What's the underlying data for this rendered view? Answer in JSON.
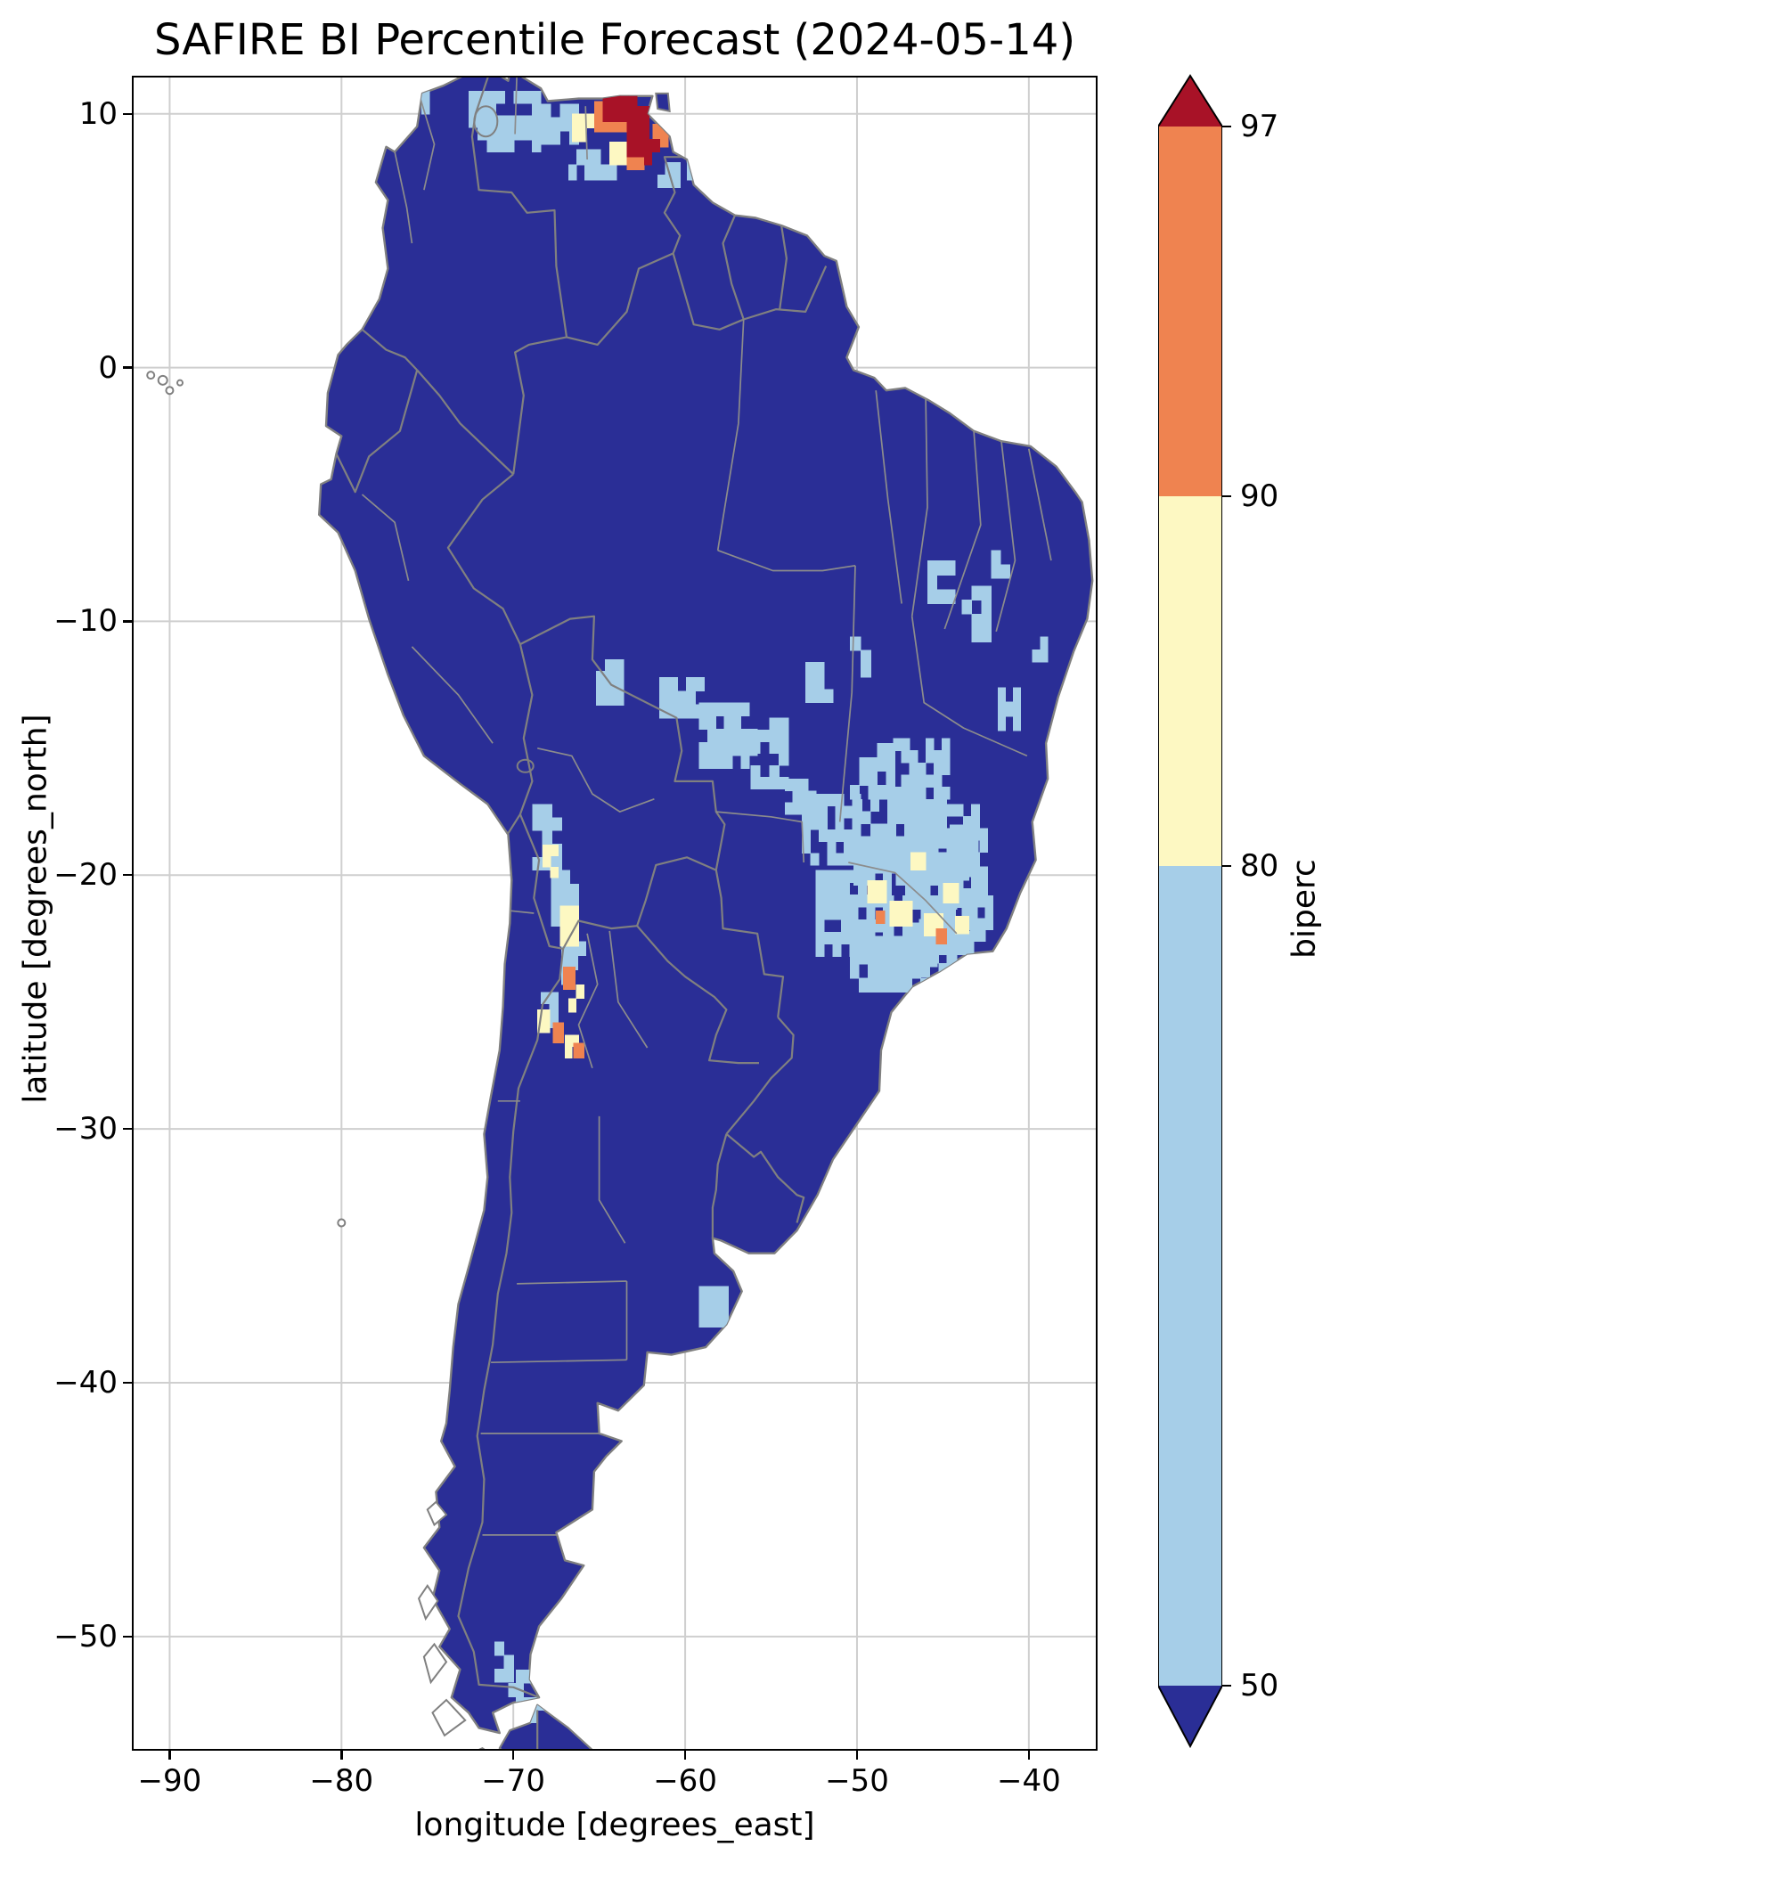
{
  "title": "SAFIRE BI Percentile Forecast (2024-05-14)",
  "axes": {
    "xlabel": "longitude [degrees_east]",
    "ylabel": "latitude [degrees_north]",
    "xticks": [
      {
        "value": -90,
        "label": "−90"
      },
      {
        "value": -80,
        "label": "−80"
      },
      {
        "value": -70,
        "label": "−70"
      },
      {
        "value": -60,
        "label": "−60"
      },
      {
        "value": -50,
        "label": "−50"
      },
      {
        "value": -40,
        "label": "−40"
      }
    ],
    "yticks": [
      {
        "value": 10,
        "label": "10"
      },
      {
        "value": 0,
        "label": "0"
      },
      {
        "value": -10,
        "label": "−10"
      },
      {
        "value": -20,
        "label": "−20"
      },
      {
        "value": -30,
        "label": "−30"
      },
      {
        "value": -40,
        "label": "−40"
      },
      {
        "value": -50,
        "label": "−50"
      }
    ]
  },
  "colorbar": {
    "label": "biperc",
    "ticks": [
      {
        "value": 97,
        "label": "97"
      },
      {
        "value": 90,
        "label": "90"
      },
      {
        "value": 80,
        "label": "80"
      },
      {
        "value": 50,
        "label": "50"
      }
    ],
    "levels": [
      {
        "name": "below-50",
        "color": "#2a2e96"
      },
      {
        "name": "50-80",
        "color": "#a6cee8"
      },
      {
        "name": "80-90",
        "color": "#fdf8c2"
      },
      {
        "name": "90-97",
        "color": "#ef8350"
      },
      {
        "name": "above-97",
        "color": "#a81227"
      }
    ],
    "extend": "both"
  },
  "chart_data": {
    "type": "heatmap",
    "title": "SAFIRE BI Percentile Forecast (2024-05-14)",
    "variable": "biperc",
    "date": "2024-05-14",
    "region": "South America",
    "xlabel": "longitude [degrees_east]",
    "ylabel": "latitude [degrees_north]",
    "xlim": [
      -92.2,
      -36.0
    ],
    "ylim": [
      -54.5,
      11.5
    ],
    "grid": true,
    "legend_position": "right",
    "level_thresholds": [
      50,
      80,
      90,
      97
    ],
    "base_level_note": "land cells not listed below are in the below-50 class (dark blue)",
    "region_format": "[lon_west, lat_north, width_deg, height_deg, level] ; level 1=50-80, 2=80-90, 3=90-97, 4=above-97",
    "regions": [
      [
        -75.8,
        10.9,
        0.9,
        0.9,
        1
      ],
      [
        -72.6,
        10.9,
        4.2,
        2.4,
        1
      ],
      [
        -68.4,
        10.4,
        2.2,
        1.6,
        1
      ],
      [
        -66.8,
        8.6,
        2.8,
        1.2,
        1
      ],
      [
        -61.6,
        8.1,
        1.3,
        1.0,
        1
      ],
      [
        -59.9,
        8.2,
        1.0,
        0.8,
        1
      ],
      [
        -65.2,
        -11.5,
        1.6,
        1.8,
        1
      ],
      [
        -61.5,
        -12.2,
        2.6,
        1.6,
        1
      ],
      [
        -59.2,
        -13.2,
        3.4,
        2.6,
        1
      ],
      [
        -56.2,
        -13.8,
        2.2,
        2.8,
        1
      ],
      [
        -54.2,
        -16.2,
        1.8,
        1.4,
        1
      ],
      [
        -53.0,
        -11.6,
        1.6,
        1.6,
        1
      ],
      [
        -50.4,
        -10.6,
        1.2,
        1.6,
        1
      ],
      [
        -45.9,
        -7.6,
        1.6,
        1.7,
        1
      ],
      [
        -43.9,
        -8.6,
        1.7,
        2.2,
        1
      ],
      [
        -42.2,
        -7.2,
        1.1,
        1.1,
        1
      ],
      [
        -41.8,
        -12.6,
        1.3,
        1.7,
        1
      ],
      [
        -39.8,
        -10.6,
        0.9,
        1.0,
        1
      ],
      [
        -53.2,
        -16.8,
        3.4,
        2.8,
        1
      ],
      [
        -50.4,
        -14.8,
        2.6,
        2.2,
        1
      ],
      [
        -50.2,
        -17.0,
        5.4,
        3.4,
        1
      ],
      [
        -47.9,
        -14.6,
        3.3,
        2.4,
        1
      ],
      [
        -47.2,
        -17.2,
        4.8,
        3.8,
        1
      ],
      [
        -52.4,
        -19.8,
        4.4,
        3.4,
        1
      ],
      [
        -48.4,
        -20.8,
        4.2,
        3.2,
        1
      ],
      [
        -44.6,
        -18.0,
        2.2,
        2.2,
        1
      ],
      [
        -46.4,
        -20.8,
        3.2,
        2.8,
        1
      ],
      [
        -50.4,
        -22.4,
        4.6,
        2.2,
        1
      ],
      [
        -43.9,
        -20.8,
        1.8,
        1.8,
        1
      ],
      [
        -68.9,
        -17.2,
        1.7,
        2.6,
        1
      ],
      [
        -67.8,
        -19.8,
        1.6,
        2.2,
        1
      ],
      [
        -67.2,
        -22.6,
        1.4,
        1.7,
        1
      ],
      [
        -68.4,
        -24.6,
        1.0,
        1.4,
        1
      ],
      [
        -59.2,
        -36.2,
        1.7,
        1.6,
        1
      ],
      [
        -71.1,
        -50.2,
        1.1,
        1.6,
        1
      ],
      [
        -70.3,
        -51.3,
        1.3,
        1.6,
        1
      ],
      [
        -69.7,
        -52.4,
        1.6,
        1.0,
        1
      ],
      [
        -66.6,
        10.0,
        1.3,
        1.1,
        2
      ],
      [
        -64.4,
        8.9,
        1.0,
        0.9,
        2
      ],
      [
        -49.4,
        -20.2,
        1.1,
        0.9,
        2
      ],
      [
        -48.1,
        -21.0,
        1.3,
        1.0,
        2
      ],
      [
        -46.1,
        -21.5,
        1.1,
        0.9,
        2
      ],
      [
        -45.0,
        -20.3,
        0.9,
        0.8,
        2
      ],
      [
        -46.9,
        -19.1,
        0.9,
        0.7,
        2
      ],
      [
        -44.3,
        -21.6,
        0.8,
        0.7,
        2
      ],
      [
        -68.3,
        -18.8,
        0.9,
        1.3,
        2
      ],
      [
        -67.3,
        -21.2,
        1.1,
        1.6,
        2
      ],
      [
        -66.8,
        -24.3,
        0.9,
        1.1,
        2
      ],
      [
        -68.6,
        -25.3,
        0.7,
        0.9,
        2
      ],
      [
        -67.0,
        -26.3,
        0.8,
        0.9,
        2
      ],
      [
        -65.3,
        10.5,
        1.9,
        1.2,
        3
      ],
      [
        -63.4,
        9.4,
        1.0,
        1.6,
        3
      ],
      [
        -61.9,
        9.6,
        0.9,
        0.9,
        3
      ],
      [
        -67.1,
        -23.6,
        0.7,
        0.9,
        3
      ],
      [
        -67.7,
        -25.8,
        0.6,
        0.8,
        3
      ],
      [
        -66.5,
        -26.6,
        0.6,
        0.6,
        3
      ],
      [
        -45.4,
        -22.1,
        0.6,
        0.6,
        3
      ],
      [
        -48.9,
        -21.4,
        0.5,
        0.5,
        3
      ],
      [
        -64.8,
        10.8,
        2.0,
        1.1,
        4
      ],
      [
        -63.4,
        10.3,
        1.3,
        2.0,
        4
      ],
      [
        -62.4,
        9.0,
        0.9,
        1.0,
        4
      ]
    ]
  }
}
